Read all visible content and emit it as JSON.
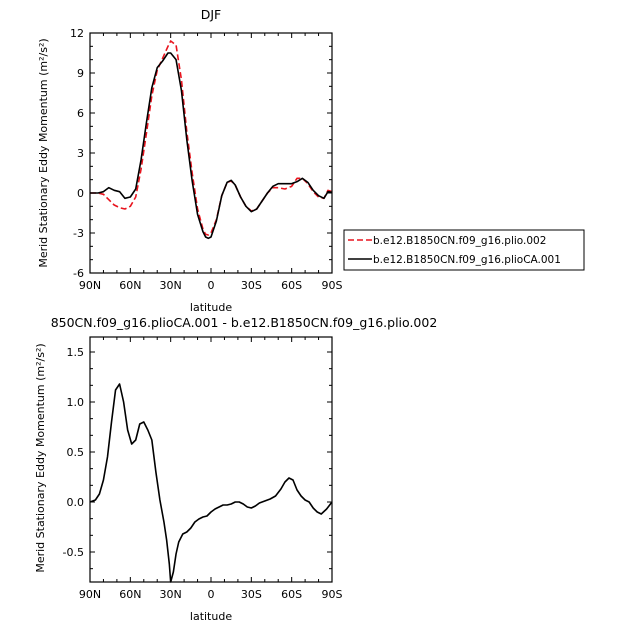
{
  "chart_data": [
    {
      "type": "line",
      "title": "DJF",
      "xlabel": "latitude",
      "ylabel": "Merid Stationary Eddy Momentum (m²/s²)",
      "x_ticks": [
        "90N",
        "60N",
        "30N",
        "0",
        "30S",
        "60S",
        "90S"
      ],
      "y_ticks": [
        "-6",
        "-3",
        "0",
        "3",
        "6",
        "9",
        "12"
      ],
      "xlim": [
        90,
        -90
      ],
      "ylim": [
        -6,
        12
      ],
      "legend_position": "outside-right",
      "series": [
        {
          "name": "b.e12.B1850CN.f09_g16.plio.002",
          "color": "#e8141e",
          "style": "dashed",
          "x": [
            90,
            84,
            80,
            76,
            72,
            68,
            64,
            60,
            56,
            52,
            48,
            44,
            40,
            36,
            32,
            30,
            26,
            22,
            18,
            14,
            10,
            6,
            4,
            2,
            0,
            -4,
            -8,
            -12,
            -15,
            -18,
            -22,
            -26,
            -30,
            -34,
            -38,
            -42,
            -46,
            -50,
            -55,
            -60,
            -64,
            -68,
            -72,
            -76,
            -80,
            -84,
            -87,
            -90
          ],
          "y": [
            0,
            0,
            -0.1,
            -0.5,
            -0.9,
            -1.1,
            -1.2,
            -1.0,
            -0.3,
            1.8,
            4.5,
            7.3,
            9.2,
            10.1,
            11.0,
            11.4,
            11.1,
            8.5,
            4.6,
            1.5,
            -1.2,
            -2.7,
            -3.1,
            -3.15,
            -3.0,
            -2.0,
            -0.2,
            0.8,
            0.9,
            0.6,
            -0.3,
            -1.0,
            -1.35,
            -1.2,
            -0.6,
            0.0,
            0.4,
            0.4,
            0.3,
            0.5,
            1.1,
            1.1,
            0.7,
            0.1,
            -0.3,
            -0.4,
            0.2,
            0.1
          ]
        },
        {
          "name": "b.e12.B1850CN.f09_g16.plioCA.001",
          "color": "#000000",
          "style": "solid",
          "x": [
            90,
            84,
            80,
            76,
            72,
            68,
            64,
            60,
            56,
            52,
            48,
            44,
            40,
            36,
            32,
            30,
            26,
            22,
            18,
            14,
            10,
            6,
            4,
            2,
            0,
            -4,
            -8,
            -12,
            -15,
            -18,
            -22,
            -26,
            -30,
            -34,
            -38,
            -42,
            -46,
            -50,
            -55,
            -60,
            -64,
            -68,
            -72,
            -76,
            -80,
            -84,
            -87,
            -90
          ],
          "y": [
            0,
            0,
            0.1,
            0.4,
            0.2,
            0.1,
            -0.4,
            -0.3,
            0.3,
            2.5,
            5.3,
            7.9,
            9.4,
            9.9,
            10.5,
            10.5,
            10.0,
            7.7,
            4.0,
            0.9,
            -1.6,
            -2.9,
            -3.3,
            -3.4,
            -3.3,
            -2.1,
            -0.2,
            0.8,
            0.95,
            0.6,
            -0.3,
            -1.0,
            -1.4,
            -1.2,
            -0.6,
            0.0,
            0.5,
            0.7,
            0.7,
            0.7,
            0.85,
            1.1,
            0.8,
            0.2,
            -0.2,
            -0.4,
            0.1,
            0.05
          ]
        }
      ]
    },
    {
      "type": "line",
      "title": "850CN.f09_g16.plioCA.001 - b.e12.B1850CN.f09_g16.plio.002",
      "xlabel": "latitude",
      "ylabel": "Merid Stationary Eddy Momentum (m²/s²)",
      "x_ticks": [
        "90N",
        "60N",
        "30N",
        "0",
        "30S",
        "60S",
        "90S"
      ],
      "y_ticks": [
        "-0.5",
        "0.0",
        "0.5",
        "1.0",
        "1.5"
      ],
      "xlim": [
        90,
        -90
      ],
      "ylim": [
        -0.8,
        1.65
      ],
      "series": [
        {
          "color": "#000000",
          "style": "solid",
          "x": [
            90,
            86,
            83,
            80,
            77,
            74,
            71,
            68,
            65,
            62,
            59,
            56,
            53,
            50,
            47,
            44,
            41,
            38,
            35,
            33,
            31,
            30,
            28,
            26,
            24,
            21,
            18,
            15,
            12,
            9,
            6,
            3,
            0,
            -3,
            -6,
            -9,
            -12,
            -15,
            -18,
            -21,
            -24,
            -27,
            -30,
            -33,
            -36,
            -40,
            -44,
            -48,
            -52,
            -55,
            -58,
            -61,
            -64,
            -67,
            -70,
            -73,
            -76,
            -79,
            -82,
            -86,
            -90
          ],
          "y": [
            0,
            0.02,
            0.08,
            0.22,
            0.45,
            0.8,
            1.12,
            1.18,
            1.0,
            0.72,
            0.58,
            0.62,
            0.78,
            0.8,
            0.72,
            0.62,
            0.3,
            0.02,
            -0.2,
            -0.38,
            -0.62,
            -0.8,
            -0.7,
            -0.52,
            -0.4,
            -0.32,
            -0.3,
            -0.26,
            -0.2,
            -0.17,
            -0.15,
            -0.14,
            -0.1,
            -0.07,
            -0.05,
            -0.03,
            -0.03,
            -0.02,
            0.0,
            0.0,
            -0.02,
            -0.05,
            -0.06,
            -0.04,
            -0.01,
            0.01,
            0.03,
            0.06,
            0.13,
            0.2,
            0.24,
            0.22,
            0.12,
            0.06,
            0.02,
            0.0,
            -0.06,
            -0.1,
            -0.12,
            -0.07,
            0.0
          ]
        }
      ]
    }
  ]
}
